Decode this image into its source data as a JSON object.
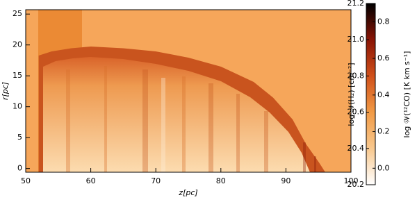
{
  "chart_data": {
    "type": "heatmap",
    "xlabel": "z[pc]",
    "ylabel": "r[pc]",
    "xlim": [
      50,
      100
    ],
    "xticks": [
      50,
      60,
      70,
      80,
      90,
      100
    ],
    "ylim": [
      -0.6,
      25.7
    ],
    "yticks": [
      0,
      5,
      10,
      15,
      20,
      25
    ],
    "colorbar": {
      "label": "log 𝒩(H₂) [cm⁻²]",
      "lim": [
        20.2,
        21.2
      ],
      "ticks": [
        20.2,
        20.4,
        20.6,
        20.8,
        {
          "value": 21,
          "label": "21.0"
        },
        21.2
      ],
      "label2": "log 𝒲(¹²CO) [K km s⁻¹]",
      "lim2": [
        -0.09,
        0.9
      ],
      "ticks2": [
        {
          "value": 0,
          "label": "0.0"
        },
        0.2,
        0.4,
        0.6,
        0.8
      ],
      "colors": [
        "#ffffff",
        "#f8c88e",
        "#f19a45",
        "#d0501a",
        "#8a1405",
        "#000000"
      ]
    }
  }
}
